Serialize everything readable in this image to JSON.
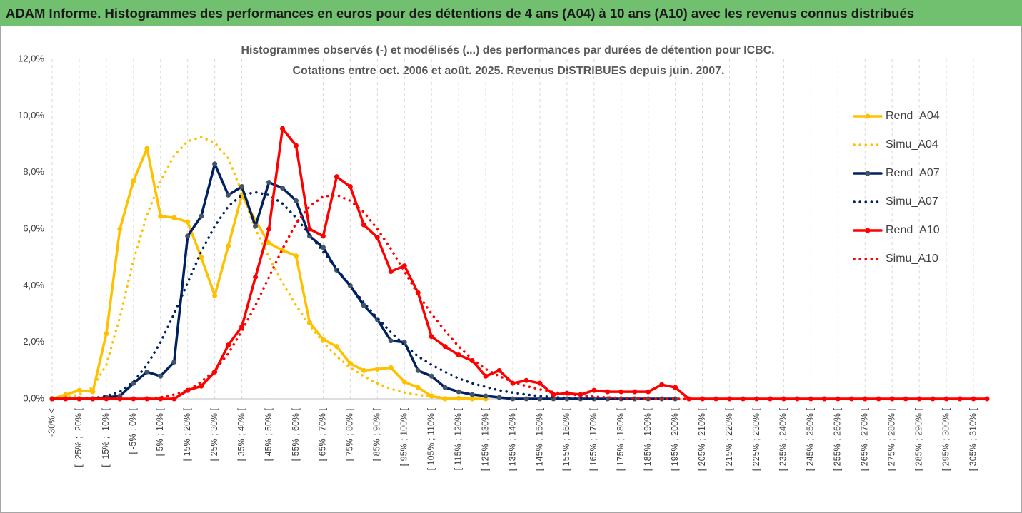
{
  "header": {
    "title": "ADAM Informe. Histogrammes des performances en euros pour des détentions de 4 ans (A04) à 10 ans (A10) avec les revenus connus distribués"
  },
  "chart_data": {
    "type": "line",
    "title": "Histogrammes observés (-) et modélisés (...) des performances par durées de détention pour ICBC.",
    "subtitle": "Cotations entre oct. 2006 et août. 2025. Revenus DISTRIBUES depuis juin. 2007.",
    "categories": [
      "-30% <",
      null,
      "[ -25% ; -20% [",
      null,
      "[ -15% ; -10% [",
      null,
      "[ -5% ; 0% [",
      null,
      "[ 5% ; 10% [",
      null,
      "[ 15% ; 20% [",
      null,
      "[ 25% ; 30% [",
      null,
      "[ 35% ; 40% [",
      null,
      "[ 45% ; 50% [",
      null,
      "[ 55% ; 60% [",
      null,
      "[ 65% ; 70% [",
      null,
      "[ 75% ; 80% [",
      null,
      "[ 85% ; 90% [",
      null,
      "[ 95% ; 100% [",
      null,
      "[ 105% ; 110% [",
      null,
      "[ 115% ; 120% [",
      null,
      "[ 125% ; 130% [",
      null,
      "[ 135% ; 140% [",
      null,
      "[ 145% ; 150% [",
      null,
      "[ 155% ; 160% [",
      null,
      "[ 165% ; 170% [",
      null,
      "[ 175% ; 180% [",
      null,
      "[ 185% ; 190% [",
      null,
      "[ 195% ; 200% [",
      null,
      "[ 205% ; 210% [",
      null,
      "[ 215% ; 220% [",
      null,
      "[ 225% ; 230% [",
      null,
      "[ 235% ; 240% [",
      null,
      "[ 245% ; 250% [",
      null,
      "[ 255% ; 260% [",
      null,
      "[ 265% ; 270% [",
      null,
      "[ 275% ; 280% [",
      null,
      "[ 285% ; 290% [",
      null,
      "[ 295% ; 300% [",
      null,
      "[ 305% ; 310% [",
      null
    ],
    "series": [
      {
        "name": "Rend_A04",
        "color": "#ffc000",
        "style": "solid",
        "values": [
          0,
          0.15,
          0.3,
          0.25,
          2.3,
          6.0,
          7.7,
          8.85,
          6.45,
          6.4,
          6.25,
          5.0,
          3.65,
          5.4,
          7.2,
          6.3,
          5.5,
          5.25,
          5.05,
          2.7,
          2.1,
          1.85,
          1.25,
          1.0,
          1.05,
          1.1,
          0.6,
          0.4,
          0.1,
          0,
          0.02,
          0,
          0,
          null,
          null,
          null,
          null,
          null,
          null,
          null,
          null,
          null,
          null,
          null,
          null,
          null,
          null,
          null,
          null,
          null,
          null,
          null,
          null,
          null,
          null,
          null,
          null,
          null,
          null,
          null,
          null,
          null,
          null,
          null,
          null,
          null,
          null,
          null,
          null,
          null
        ]
      },
      {
        "name": "Simu_A04",
        "color": "#ffc000",
        "style": "dotted",
        "values": [
          0,
          0.05,
          0.15,
          0.4,
          1.2,
          2.9,
          4.9,
          6.5,
          7.7,
          8.6,
          9.1,
          9.25,
          9.05,
          8.5,
          7.3,
          6.0,
          5.0,
          4.1,
          3.3,
          2.6,
          2.0,
          1.5,
          1.1,
          0.8,
          0.55,
          0.35,
          0.22,
          0.14,
          0.08,
          0.05,
          0.02,
          0.01,
          0,
          null,
          null,
          null,
          null,
          null,
          null,
          null,
          null,
          null,
          null,
          null,
          null,
          null,
          null,
          null,
          null,
          null,
          null,
          null,
          null,
          null,
          null,
          null,
          null,
          null,
          null,
          null,
          null,
          null,
          null,
          null,
          null,
          null,
          null,
          null,
          null,
          null
        ]
      },
      {
        "name": "Rend_A07",
        "color": "#002060",
        "style": "solid",
        "values": [
          0,
          0,
          0,
          0,
          0.05,
          0.1,
          0.55,
          0.95,
          0.8,
          1.3,
          5.75,
          6.45,
          8.3,
          7.2,
          7.5,
          6.1,
          7.65,
          7.45,
          7.0,
          5.75,
          5.35,
          4.55,
          4.0,
          3.3,
          2.8,
          2.05,
          2.0,
          1.0,
          0.8,
          0.4,
          0.25,
          0.15,
          0.1,
          0.05,
          0,
          0,
          0,
          0,
          0,
          0,
          0,
          0,
          0,
          0,
          0,
          0,
          0,
          null,
          null,
          null,
          null,
          null,
          null,
          null,
          null,
          null,
          null,
          null,
          null,
          null,
          null,
          null,
          null,
          null,
          null,
          null,
          null,
          null,
          null,
          null
        ]
      },
      {
        "name": "Simu_A07",
        "color": "#002060",
        "style": "dotted",
        "values": [
          0,
          0,
          0,
          0.02,
          0.1,
          0.25,
          0.6,
          1.2,
          2.0,
          3.0,
          4.1,
          5.2,
          6.1,
          6.8,
          7.2,
          7.3,
          7.2,
          6.9,
          6.4,
          5.8,
          5.2,
          4.6,
          4.0,
          3.4,
          2.85,
          2.35,
          1.9,
          1.5,
          1.2,
          0.95,
          0.72,
          0.55,
          0.42,
          0.3,
          0.22,
          0.15,
          0.1,
          0.06,
          0.03,
          0.02,
          0,
          0,
          0,
          0,
          0,
          0,
          0,
          null,
          null,
          null,
          null,
          null,
          null,
          null,
          null,
          null,
          null,
          null,
          null,
          null,
          null,
          null,
          null,
          null,
          null,
          null,
          null,
          null,
          null,
          null
        ]
      },
      {
        "name": "Rend_A10",
        "color": "#ff0000",
        "style": "solid",
        "values": [
          0,
          0,
          0,
          0,
          0,
          0,
          0,
          0,
          0,
          0,
          0.3,
          0.45,
          0.95,
          1.9,
          2.55,
          4.3,
          6.0,
          9.55,
          8.95,
          6.0,
          5.75,
          7.85,
          7.5,
          6.15,
          5.7,
          4.5,
          4.7,
          3.75,
          2.2,
          1.85,
          1.55,
          1.35,
          0.8,
          1.0,
          0.55,
          0.65,
          0.55,
          0.15,
          0.2,
          0.15,
          0.3,
          0.25,
          0.25,
          0.25,
          0.25,
          0.5,
          0.4,
          0,
          0,
          0,
          0,
          0,
          0,
          0,
          0,
          0,
          0,
          0,
          0,
          0,
          0,
          0,
          0,
          0,
          0,
          0,
          0,
          0,
          0,
          0
        ]
      },
      {
        "name": "Simu_A10",
        "color": "#ff0000",
        "style": "dotted",
        "values": [
          0,
          0,
          0,
          0,
          0,
          0,
          0,
          0,
          0.05,
          0.15,
          0.3,
          0.6,
          1.0,
          1.6,
          2.4,
          3.3,
          4.3,
          5.3,
          6.2,
          6.8,
          7.15,
          7.2,
          7.0,
          6.6,
          6.0,
          5.3,
          4.5,
          3.7,
          3.0,
          2.4,
          1.85,
          1.4,
          1.05,
          0.8,
          0.6,
          0.45,
          0.33,
          0.24,
          0.17,
          0.12,
          0.08,
          0.05,
          0.03,
          0.02,
          0,
          0,
          0,
          0,
          null,
          null,
          null,
          null,
          null,
          null,
          null,
          null,
          null,
          null,
          null,
          null,
          null,
          null,
          null,
          null,
          null,
          null,
          null,
          null,
          null,
          null
        ]
      }
    ],
    "ylim": [
      0,
      12
    ],
    "yticks": [
      {
        "value": 0,
        "label": "0,0%"
      },
      {
        "value": 2,
        "label": "2,0%"
      },
      {
        "value": 4,
        "label": "4,0%"
      },
      {
        "value": 6,
        "label": "6,0%"
      },
      {
        "value": 8,
        "label": "8,0%"
      },
      {
        "value": 10,
        "label": "10,0%"
      },
      {
        "value": 12,
        "label": "12,0%"
      }
    ],
    "xgrid": true,
    "ygrid": false,
    "legend": "right"
  }
}
